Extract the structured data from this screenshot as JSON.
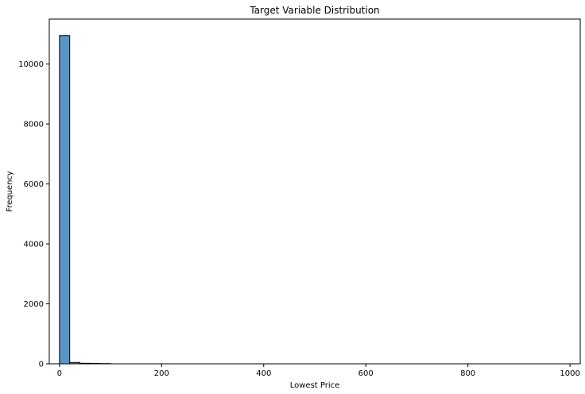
{
  "chart_data": {
    "type": "bar",
    "title": "Target Variable Distribution",
    "xlabel": "Lowest Price",
    "ylabel": "Frequency",
    "xlim": [
      -20,
      1020
    ],
    "ylim": [
      0,
      11500
    ],
    "xticks": [
      0,
      200,
      400,
      600,
      800,
      1000
    ],
    "yticks": [
      0,
      2000,
      4000,
      6000,
      8000,
      10000
    ],
    "bin_width": 20,
    "bins": [
      {
        "x0": 0,
        "x1": 20,
        "value": 10950
      },
      {
        "x0": 20,
        "x1": 40,
        "value": 45
      },
      {
        "x0": 40,
        "x1": 60,
        "value": 18
      },
      {
        "x0": 60,
        "x1": 80,
        "value": 12
      },
      {
        "x0": 80,
        "x1": 100,
        "value": 8
      }
    ],
    "grid": false,
    "bar_color": "#5b95c4",
    "edge_color": "#000000"
  }
}
